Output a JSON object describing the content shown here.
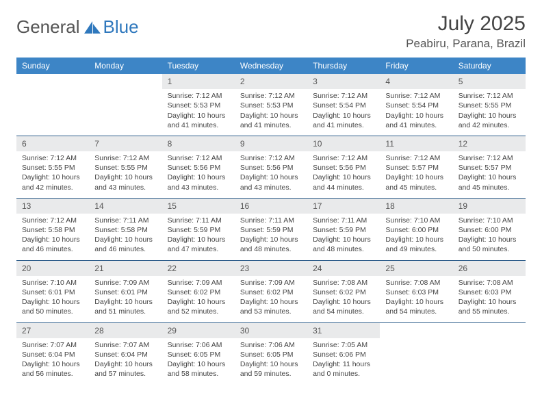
{
  "brand": {
    "name1": "General",
    "name2": "Blue"
  },
  "title": "July 2025",
  "location": "Peabiru, Parana, Brazil",
  "colors": {
    "header_bg": "#3d85c6",
    "header_text": "#ffffff",
    "daynum_bg": "#e9eaeb",
    "divider": "#2d5d8a",
    "brand_blue": "#2f78bd",
    "text": "#444444"
  },
  "fonts": {
    "body_pt": 10.5,
    "daynum_pt": 12,
    "header_pt": 12,
    "title_pt": 30,
    "location_pt": 17
  },
  "weekdays": [
    "Sunday",
    "Monday",
    "Tuesday",
    "Wednesday",
    "Thursday",
    "Friday",
    "Saturday"
  ],
  "weeks": [
    {
      "nums": [
        "",
        "",
        "1",
        "2",
        "3",
        "4",
        "5"
      ],
      "days": [
        null,
        null,
        {
          "sunrise": "7:12 AM",
          "sunset": "5:53 PM",
          "daylight": "10 hours and 41 minutes."
        },
        {
          "sunrise": "7:12 AM",
          "sunset": "5:53 PM",
          "daylight": "10 hours and 41 minutes."
        },
        {
          "sunrise": "7:12 AM",
          "sunset": "5:54 PM",
          "daylight": "10 hours and 41 minutes."
        },
        {
          "sunrise": "7:12 AM",
          "sunset": "5:54 PM",
          "daylight": "10 hours and 41 minutes."
        },
        {
          "sunrise": "7:12 AM",
          "sunset": "5:55 PM",
          "daylight": "10 hours and 42 minutes."
        }
      ]
    },
    {
      "nums": [
        "6",
        "7",
        "8",
        "9",
        "10",
        "11",
        "12"
      ],
      "days": [
        {
          "sunrise": "7:12 AM",
          "sunset": "5:55 PM",
          "daylight": "10 hours and 42 minutes."
        },
        {
          "sunrise": "7:12 AM",
          "sunset": "5:55 PM",
          "daylight": "10 hours and 43 minutes."
        },
        {
          "sunrise": "7:12 AM",
          "sunset": "5:56 PM",
          "daylight": "10 hours and 43 minutes."
        },
        {
          "sunrise": "7:12 AM",
          "sunset": "5:56 PM",
          "daylight": "10 hours and 43 minutes."
        },
        {
          "sunrise": "7:12 AM",
          "sunset": "5:56 PM",
          "daylight": "10 hours and 44 minutes."
        },
        {
          "sunrise": "7:12 AM",
          "sunset": "5:57 PM",
          "daylight": "10 hours and 45 minutes."
        },
        {
          "sunrise": "7:12 AM",
          "sunset": "5:57 PM",
          "daylight": "10 hours and 45 minutes."
        }
      ]
    },
    {
      "nums": [
        "13",
        "14",
        "15",
        "16",
        "17",
        "18",
        "19"
      ],
      "days": [
        {
          "sunrise": "7:12 AM",
          "sunset": "5:58 PM",
          "daylight": "10 hours and 46 minutes."
        },
        {
          "sunrise": "7:11 AM",
          "sunset": "5:58 PM",
          "daylight": "10 hours and 46 minutes."
        },
        {
          "sunrise": "7:11 AM",
          "sunset": "5:59 PM",
          "daylight": "10 hours and 47 minutes."
        },
        {
          "sunrise": "7:11 AM",
          "sunset": "5:59 PM",
          "daylight": "10 hours and 48 minutes."
        },
        {
          "sunrise": "7:11 AM",
          "sunset": "5:59 PM",
          "daylight": "10 hours and 48 minutes."
        },
        {
          "sunrise": "7:10 AM",
          "sunset": "6:00 PM",
          "daylight": "10 hours and 49 minutes."
        },
        {
          "sunrise": "7:10 AM",
          "sunset": "6:00 PM",
          "daylight": "10 hours and 50 minutes."
        }
      ]
    },
    {
      "nums": [
        "20",
        "21",
        "22",
        "23",
        "24",
        "25",
        "26"
      ],
      "days": [
        {
          "sunrise": "7:10 AM",
          "sunset": "6:01 PM",
          "daylight": "10 hours and 50 minutes."
        },
        {
          "sunrise": "7:09 AM",
          "sunset": "6:01 PM",
          "daylight": "10 hours and 51 minutes."
        },
        {
          "sunrise": "7:09 AM",
          "sunset": "6:02 PM",
          "daylight": "10 hours and 52 minutes."
        },
        {
          "sunrise": "7:09 AM",
          "sunset": "6:02 PM",
          "daylight": "10 hours and 53 minutes."
        },
        {
          "sunrise": "7:08 AM",
          "sunset": "6:02 PM",
          "daylight": "10 hours and 54 minutes."
        },
        {
          "sunrise": "7:08 AM",
          "sunset": "6:03 PM",
          "daylight": "10 hours and 54 minutes."
        },
        {
          "sunrise": "7:08 AM",
          "sunset": "6:03 PM",
          "daylight": "10 hours and 55 minutes."
        }
      ]
    },
    {
      "nums": [
        "27",
        "28",
        "29",
        "30",
        "31",
        "",
        ""
      ],
      "days": [
        {
          "sunrise": "7:07 AM",
          "sunset": "6:04 PM",
          "daylight": "10 hours and 56 minutes."
        },
        {
          "sunrise": "7:07 AM",
          "sunset": "6:04 PM",
          "daylight": "10 hours and 57 minutes."
        },
        {
          "sunrise": "7:06 AM",
          "sunset": "6:05 PM",
          "daylight": "10 hours and 58 minutes."
        },
        {
          "sunrise": "7:06 AM",
          "sunset": "6:05 PM",
          "daylight": "10 hours and 59 minutes."
        },
        {
          "sunrise": "7:05 AM",
          "sunset": "6:06 PM",
          "daylight": "11 hours and 0 minutes."
        },
        null,
        null
      ]
    }
  ],
  "labels": {
    "sunrise": "Sunrise:",
    "sunset": "Sunset:",
    "daylight": "Daylight:"
  }
}
